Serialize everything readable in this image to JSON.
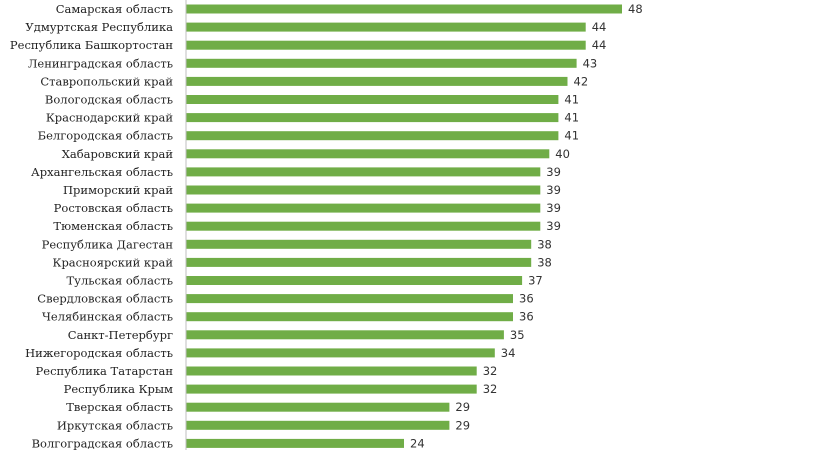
{
  "chart_data": {
    "type": "bar",
    "orientation": "horizontal",
    "categories": [
      "Самарская область",
      "Удмуртская Республика",
      "Республика Башкортостан",
      "Ленинградская область",
      "Ставропольский край",
      "Вологодская область",
      "Краснодарский край",
      "Белгородская область",
      "Хабаровский край",
      "Архангельская область",
      "Приморский край",
      "Ростовская область",
      "Тюменская область",
      "Республика Дагестан",
      "Красноярский край",
      "Тульская область",
      "Свердловская область",
      "Челябинская область",
      "Санкт-Петербург",
      "Нижегородская область",
      "Республика Татарстан",
      "Республика Крым",
      "Тверская область",
      "Иркутская область",
      "Волгоградская область"
    ],
    "values": [
      48,
      44,
      44,
      43,
      42,
      41,
      41,
      41,
      40,
      39,
      39,
      39,
      39,
      38,
      38,
      37,
      36,
      36,
      35,
      34,
      32,
      32,
      29,
      29,
      24
    ],
    "xlim": [
      0,
      48
    ],
    "grid": false,
    "legend": "none",
    "bar_color": "#70ad47",
    "axis_color": "#bfbfbf"
  }
}
